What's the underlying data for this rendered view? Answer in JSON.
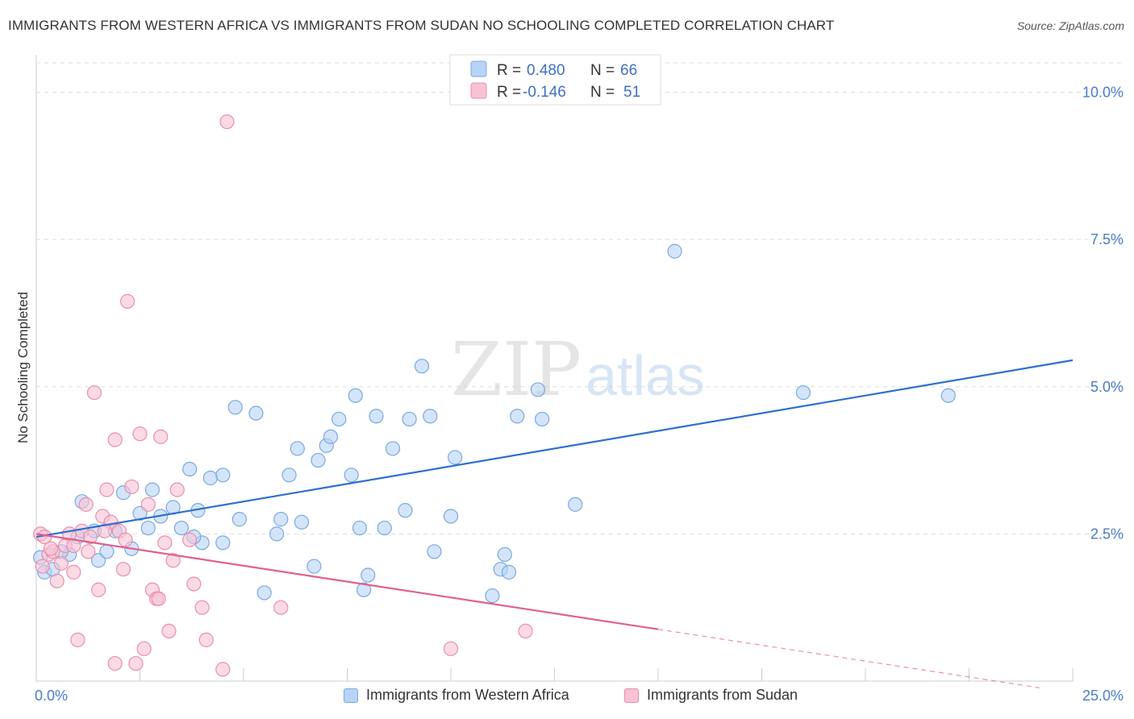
{
  "header": {
    "title": "IMMIGRANTS FROM WESTERN AFRICA VS IMMIGRANTS FROM SUDAN NO SCHOOLING COMPLETED CORRELATION CHART",
    "source": "Source: ZipAtlas.com"
  },
  "watermark": {
    "zip": "ZIP",
    "atlas": "atlas"
  },
  "legend_top": {
    "rows": [
      {
        "r_label": "R = ",
        "r_value": "0.480",
        "n_label": "N = ",
        "n_value": "66"
      },
      {
        "r_label": "R = ",
        "r_value": "-0.146",
        "n_label": "N = ",
        "n_value": "51"
      }
    ]
  },
  "legend_bottom": {
    "items": [
      "Immigrants from Western Africa",
      "Immigrants from Sudan"
    ]
  },
  "colors": {
    "blue_fill": "#b8d3f5",
    "blue_stroke": "#7aa9e0",
    "blue_line": "#2e6fd1",
    "pink_fill": "#f7c2d3",
    "pink_stroke": "#e98fad",
    "pink_line": "#e0608e",
    "tick_text": "#4a7cc7",
    "grid": "#dddddd"
  },
  "chart_data": {
    "type": "scatter",
    "title": "IMMIGRANTS FROM WESTERN AFRICA VS IMMIGRANTS FROM SUDAN NO SCHOOLING COMPLETED CORRELATION CHART",
    "xlabel": "",
    "ylabel": "No Schooling Completed",
    "xlim": [
      0,
      25
    ],
    "ylim": [
      0,
      10.5
    ],
    "x_tick_labels": [
      "0.0%",
      "25.0%"
    ],
    "y_ticks": [
      2.5,
      5.0,
      7.5,
      10.0
    ],
    "y_tick_labels": [
      "2.5%",
      "5.0%",
      "7.5%",
      "10.0%"
    ],
    "grid": "horizontal dashed",
    "legend_position": "top-center",
    "series": [
      {
        "name": "Immigrants from Western Africa",
        "color": "blue",
        "r": 0.48,
        "n": 66,
        "trend": {
          "x": [
            0,
            25
          ],
          "y": [
            2.45,
            5.45
          ],
          "dashed_from": null
        },
        "points": [
          [
            0.2,
            1.85
          ],
          [
            0.4,
            1.9
          ],
          [
            0.8,
            2.15
          ],
          [
            1.0,
            2.45
          ],
          [
            1.1,
            3.05
          ],
          [
            1.4,
            2.55
          ],
          [
            1.5,
            2.05
          ],
          [
            1.7,
            2.2
          ],
          [
            1.9,
            2.55
          ],
          [
            2.1,
            3.2
          ],
          [
            2.3,
            2.25
          ],
          [
            2.5,
            2.85
          ],
          [
            2.7,
            2.6
          ],
          [
            2.8,
            3.25
          ],
          [
            3.0,
            2.8
          ],
          [
            3.3,
            2.95
          ],
          [
            3.5,
            2.6
          ],
          [
            3.7,
            3.6
          ],
          [
            3.9,
            2.9
          ],
          [
            4.0,
            2.35
          ],
          [
            4.2,
            3.45
          ],
          [
            4.5,
            2.35
          ],
          [
            4.5,
            3.5
          ],
          [
            4.8,
            4.65
          ],
          [
            4.9,
            2.75
          ],
          [
            5.3,
            4.55
          ],
          [
            5.5,
            1.5
          ],
          [
            5.8,
            2.5
          ],
          [
            5.9,
            2.75
          ],
          [
            6.1,
            3.5
          ],
          [
            6.3,
            3.95
          ],
          [
            6.4,
            2.7
          ],
          [
            6.7,
            1.95
          ],
          [
            6.8,
            3.75
          ],
          [
            7.0,
            4.0
          ],
          [
            7.1,
            4.15
          ],
          [
            7.3,
            4.45
          ],
          [
            7.6,
            3.5
          ],
          [
            7.7,
            4.85
          ],
          [
            7.8,
            2.6
          ],
          [
            7.9,
            1.55
          ],
          [
            8.0,
            1.8
          ],
          [
            8.2,
            4.5
          ],
          [
            8.4,
            2.6
          ],
          [
            8.6,
            3.95
          ],
          [
            8.9,
            2.9
          ],
          [
            9.0,
            4.45
          ],
          [
            9.3,
            5.35
          ],
          [
            9.5,
            4.5
          ],
          [
            9.6,
            2.2
          ],
          [
            10.0,
            2.8
          ],
          [
            10.1,
            3.8
          ],
          [
            11.0,
            1.45
          ],
          [
            11.2,
            1.9
          ],
          [
            11.3,
            2.15
          ],
          [
            11.4,
            1.85
          ],
          [
            11.6,
            4.5
          ],
          [
            12.1,
            4.95
          ],
          [
            12.2,
            4.45
          ],
          [
            13.0,
            3.0
          ],
          [
            15.4,
            7.3
          ],
          [
            18.5,
            4.9
          ],
          [
            22.0,
            4.85
          ],
          [
            0.1,
            2.1
          ],
          [
            0.6,
            2.2
          ],
          [
            3.8,
            2.45
          ]
        ]
      },
      {
        "name": "Immigrants from Sudan",
        "color": "pink",
        "r": -0.146,
        "n": 51,
        "trend": {
          "x": [
            0,
            25
          ],
          "y": [
            2.5,
            -0.2
          ],
          "solid_until_x": 15
        },
        "points": [
          [
            0.1,
            2.5
          ],
          [
            0.2,
            2.45
          ],
          [
            0.3,
            2.15
          ],
          [
            0.4,
            2.2
          ],
          [
            0.5,
            1.7
          ],
          [
            0.6,
            2.0
          ],
          [
            0.7,
            2.3
          ],
          [
            0.8,
            2.5
          ],
          [
            0.9,
            2.3
          ],
          [
            0.9,
            1.85
          ],
          [
            1.0,
            0.7
          ],
          [
            1.1,
            2.55
          ],
          [
            1.2,
            3.0
          ],
          [
            1.3,
            2.45
          ],
          [
            1.4,
            4.9
          ],
          [
            1.5,
            1.55
          ],
          [
            1.6,
            2.8
          ],
          [
            1.7,
            3.25
          ],
          [
            1.8,
            2.7
          ],
          [
            1.9,
            0.3
          ],
          [
            1.9,
            4.1
          ],
          [
            2.0,
            2.55
          ],
          [
            2.1,
            1.9
          ],
          [
            2.2,
            6.45
          ],
          [
            2.3,
            3.3
          ],
          [
            2.4,
            0.3
          ],
          [
            2.5,
            4.2
          ],
          [
            2.6,
            0.55
          ],
          [
            2.7,
            3.0
          ],
          [
            2.8,
            1.55
          ],
          [
            2.9,
            1.4
          ],
          [
            3.0,
            4.15
          ],
          [
            3.1,
            2.35
          ],
          [
            3.2,
            0.85
          ],
          [
            3.3,
            2.05
          ],
          [
            3.4,
            3.25
          ],
          [
            3.7,
            2.4
          ],
          [
            3.8,
            1.65
          ],
          [
            4.0,
            1.25
          ],
          [
            4.1,
            0.7
          ],
          [
            4.5,
            0.2
          ],
          [
            4.6,
            9.5
          ],
          [
            5.9,
            1.25
          ],
          [
            10.0,
            0.55
          ],
          [
            11.8,
            0.85
          ],
          [
            0.15,
            1.95
          ],
          [
            0.35,
            2.25
          ],
          [
            1.25,
            2.2
          ],
          [
            2.95,
            1.4
          ],
          [
            2.15,
            2.4
          ],
          [
            1.65,
            2.55
          ]
        ]
      }
    ]
  }
}
